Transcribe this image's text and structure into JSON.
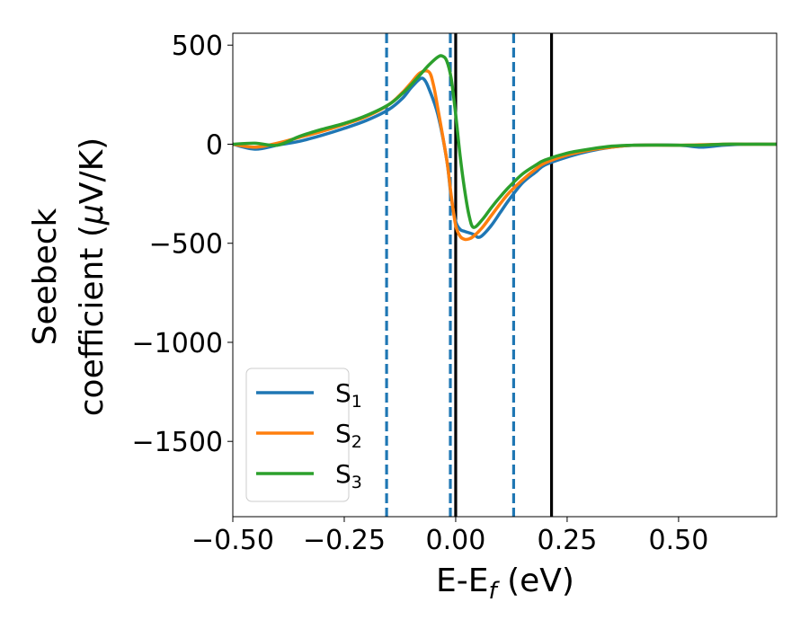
{
  "chart_data": {
    "type": "line",
    "title": "",
    "xlabel_main": "E-E",
    "xlabel_sub": "f",
    "xlabel_unit": " (eV)",
    "ylabel_line1": "Seebeck",
    "ylabel_line2_prefix": "coefficient  (",
    "ylabel_mu": "μ",
    "ylabel_line2_suffix": "V/K)",
    "xlim": [
      -0.5,
      0.72
    ],
    "ylim": [
      -1880,
      560
    ],
    "xticks": [
      -0.5,
      -0.25,
      0.0,
      0.25,
      0.5
    ],
    "xtick_labels": [
      "−0.50",
      "−0.25",
      "0.00",
      "0.25",
      "0.50"
    ],
    "yticks": [
      500,
      0,
      -500,
      -1000,
      -1500
    ],
    "ytick_labels": [
      "500",
      "0",
      "−500",
      "−1000",
      "−1500"
    ],
    "grid": false,
    "legend_position": "lower-left",
    "vlines_dashed": [
      -0.155,
      -0.012,
      0.13
    ],
    "vlines_solid": [
      0.0,
      0.215
    ],
    "vline_dashed_color": "#1f77b4",
    "vline_solid_color": "#000000",
    "series": [
      {
        "name": "S",
        "sub": "1",
        "color": "#1f77b4",
        "x": [
          -0.5,
          -0.45,
          -0.4,
          -0.35,
          -0.3,
          -0.25,
          -0.2,
          -0.15,
          -0.12,
          -0.1,
          -0.08,
          -0.07,
          -0.06,
          -0.04,
          -0.02,
          -0.01,
          0.0,
          0.01,
          0.02,
          0.04,
          0.05,
          0.06,
          0.08,
          0.1,
          0.12,
          0.15,
          0.18,
          0.2,
          0.25,
          0.3,
          0.35,
          0.4,
          0.5,
          0.55,
          0.6,
          0.65,
          0.72
        ],
        "y": [
          0,
          -25,
          -5,
          15,
          45,
          80,
          120,
          175,
          230,
          285,
          330,
          325,
          280,
          150,
          -80,
          -270,
          -390,
          -430,
          -440,
          -455,
          -470,
          -460,
          -410,
          -345,
          -280,
          -195,
          -140,
          -105,
          -65,
          -35,
          -15,
          -5,
          -5,
          -15,
          -5,
          0,
          0
        ]
      },
      {
        "name": "S",
        "sub": "2",
        "color": "#ff7f0e",
        "x": [
          -0.5,
          -0.45,
          -0.4,
          -0.35,
          -0.3,
          -0.25,
          -0.2,
          -0.15,
          -0.12,
          -0.1,
          -0.08,
          -0.06,
          -0.05,
          -0.04,
          -0.02,
          -0.01,
          0.0,
          0.01,
          0.02,
          0.03,
          0.04,
          0.06,
          0.08,
          0.1,
          0.12,
          0.15,
          0.18,
          0.2,
          0.25,
          0.3,
          0.35,
          0.4,
          0.5,
          0.6,
          0.65,
          0.72
        ],
        "y": [
          0,
          -15,
          5,
          35,
          65,
          100,
          140,
          200,
          260,
          310,
          360,
          365,
          300,
          180,
          -80,
          -260,
          -410,
          -465,
          -480,
          -478,
          -465,
          -420,
          -360,
          -300,
          -245,
          -180,
          -125,
          -95,
          -55,
          -30,
          -15,
          -5,
          -5,
          0,
          0,
          0
        ]
      },
      {
        "name": "S",
        "sub": "3",
        "color": "#2ca02c",
        "x": [
          -0.5,
          -0.45,
          -0.4,
          -0.35,
          -0.3,
          -0.25,
          -0.2,
          -0.15,
          -0.12,
          -0.1,
          -0.08,
          -0.06,
          -0.04,
          -0.03,
          -0.02,
          -0.01,
          0.0,
          0.01,
          0.02,
          0.03,
          0.04,
          0.06,
          0.08,
          0.1,
          0.12,
          0.15,
          0.18,
          0.2,
          0.25,
          0.3,
          0.35,
          0.4,
          0.5,
          0.55,
          0.6,
          0.65,
          0.72
        ],
        "y": [
          0,
          5,
          -5,
          40,
          75,
          105,
          145,
          200,
          255,
          300,
          350,
          400,
          440,
          445,
          420,
          330,
          150,
          -60,
          -230,
          -360,
          -420,
          -380,
          -320,
          -265,
          -215,
          -150,
          -105,
          -80,
          -45,
          -25,
          -10,
          -5,
          -5,
          -5,
          0,
          0,
          0
        ]
      }
    ]
  }
}
